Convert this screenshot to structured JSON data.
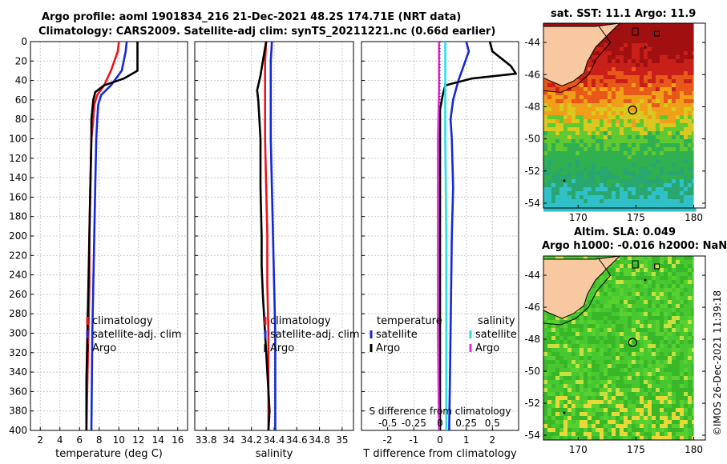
{
  "title_line1": "Argo profile: aoml 1901834_216 21-Dec-2021 48.2S 174.71E (NRT data)",
  "title_line2": "Climatology: CARS2009. Satellite-adj clim: synTS_20211221.nc (0.66d earlier)",
  "sst_title": "sat. SST: 11.1 Argo: 11.9",
  "sla_title1": "Altim. SLA: 0.049",
  "sla_title2": "Argo h1000: -0.016 h2000: NaN",
  "copyright": "©IMOS 26-Dec-2021 11:39:18",
  "colors": {
    "climatology": "#e8141c",
    "satellite": "#1428d8",
    "argo": "#000000",
    "sal_satellite": "#28e0e8",
    "sal_diff": "#e828e0",
    "grid": "#c8c8c8",
    "land": "#f8c8a0"
  },
  "chart_data": [
    {
      "id": "temperature",
      "type": "line",
      "xlabel": "temperature (deg C)",
      "ylabel": "",
      "xlim": [
        1,
        17
      ],
      "ylim": [
        400,
        0
      ],
      "xticks": [
        2,
        4,
        6,
        8,
        10,
        12,
        14,
        16
      ],
      "yticks": [
        0,
        20,
        40,
        60,
        80,
        100,
        120,
        140,
        160,
        180,
        200,
        220,
        240,
        260,
        280,
        300,
        320,
        340,
        360,
        380,
        400
      ],
      "legend": [
        "climatology",
        "satellite-adj. clim",
        "Argo"
      ],
      "series": [
        {
          "name": "climatology",
          "depth": [
            0,
            10,
            30,
            45,
            55,
            65,
            80,
            100,
            150,
            200,
            250,
            300,
            350,
            400
          ],
          "values": [
            10,
            9.9,
            9.2,
            8.5,
            7.8,
            7.5,
            7.4,
            7.2,
            7.1,
            7.0,
            7.0,
            6.9,
            6.8,
            6.7
          ]
        },
        {
          "name": "satellite-adj. clim",
          "depth": [
            0,
            10,
            30,
            45,
            55,
            65,
            80,
            100,
            150,
            200,
            250,
            300,
            350,
            400
          ],
          "values": [
            10.8,
            10.7,
            10.3,
            9.2,
            8.2,
            7.9,
            7.8,
            7.7,
            7.6,
            7.5,
            7.4,
            7.3,
            7.25,
            7.2
          ]
        },
        {
          "name": "Argo",
          "depth": [
            0,
            10,
            30,
            38,
            45,
            52,
            60,
            70,
            80,
            100,
            150,
            200,
            250,
            300,
            350,
            400
          ],
          "values": [
            11.9,
            11.9,
            11.9,
            10.5,
            8.5,
            7.6,
            7.4,
            7.3,
            7.2,
            7.2,
            7.1,
            7.0,
            6.9,
            6.8,
            6.7,
            6.7
          ]
        }
      ]
    },
    {
      "id": "salinity",
      "type": "line",
      "xlabel": "salinity",
      "xlim": [
        33.7,
        35.1
      ],
      "ylim": [
        400,
        0
      ],
      "xticks": [
        33.8,
        34,
        34.2,
        34.4,
        34.6,
        34.8,
        35
      ],
      "xticklabels": [
        "33.8",
        "34",
        "34.2",
        "34.4",
        "34.6",
        "34.8",
        "35"
      ],
      "legend": [
        "climatology",
        "satellite-adj. clim",
        "Argo"
      ],
      "series": [
        {
          "name": "climatology",
          "depth": [
            0,
            20,
            40,
            60,
            100,
            150,
            200,
            250,
            300,
            350,
            400
          ],
          "values": [
            34.33,
            34.32,
            34.32,
            34.32,
            34.32,
            34.33,
            34.34,
            34.34,
            34.35,
            34.35,
            34.35
          ]
        },
        {
          "name": "satellite-adj. clim",
          "depth": [
            0,
            20,
            40,
            60,
            100,
            150,
            200,
            250,
            300,
            350,
            400
          ],
          "values": [
            34.38,
            34.37,
            34.37,
            34.37,
            34.37,
            34.38,
            34.39,
            34.4,
            34.41,
            34.41,
            34.41
          ]
        },
        {
          "name": "Argo",
          "depth": [
            0,
            20,
            35,
            50,
            60,
            80,
            100,
            150,
            200,
            230,
            260,
            300,
            340,
            380,
            400
          ],
          "values": [
            34.33,
            34.3,
            34.28,
            34.25,
            34.26,
            34.27,
            34.28,
            34.28,
            34.29,
            34.29,
            34.3,
            34.32,
            34.34,
            34.36,
            34.35
          ]
        }
      ]
    },
    {
      "id": "difference",
      "type": "line",
      "xlabel": "T difference from climatology",
      "xlabel_top": "S difference from climatology",
      "xlim": [
        -3,
        3
      ],
      "ylim": [
        400,
        0
      ],
      "xticks": [
        -2,
        -1,
        0,
        1,
        2
      ],
      "xticklabels": [
        "-2",
        "-1",
        "0",
        "1",
        "2"
      ],
      "s_xlim": [
        -0.75,
        0.75
      ],
      "s_xticks": [
        -0.5,
        -0.25,
        0,
        0.25,
        0.5
      ],
      "s_xticklabels": [
        "-0.5",
        "-0.25",
        "0",
        "0.25",
        "0.5"
      ],
      "legend_temp_title": "temperature",
      "legend_sal_title": "salinity",
      "legend_temp": [
        "satellite",
        "Argo"
      ],
      "legend_sal": [
        "satellite",
        "Argo"
      ],
      "series": [
        {
          "name": "T satellite",
          "depth": [
            0,
            10,
            25,
            40,
            60,
            80,
            100,
            150,
            200,
            300,
            400
          ],
          "values": [
            1.0,
            1.1,
            0.9,
            0.7,
            0.5,
            0.4,
            0.45,
            0.5,
            0.45,
            0.4,
            0.35
          ]
        },
        {
          "name": "T Argo",
          "depth": [
            0,
            10,
            25,
            33,
            38,
            45,
            55,
            70,
            100,
            200,
            300,
            400
          ],
          "values": [
            1.9,
            2.0,
            2.7,
            2.9,
            1.2,
            0.2,
            0.1,
            0.0,
            0.0,
            0.0,
            0.0,
            0.0
          ]
        },
        {
          "name": "S satellite",
          "depth": [
            0,
            50,
            100,
            200,
            300,
            400
          ],
          "values": [
            0.05,
            0.05,
            0.05,
            0.06,
            0.06,
            0.06
          ]
        },
        {
          "name": "S Argo",
          "depth": [
            0,
            50,
            100,
            200,
            300,
            400
          ],
          "values": [
            -0.01,
            -0.01,
            -0.02,
            -0.02,
            -0.02,
            -0.01
          ]
        }
      ]
    },
    {
      "id": "sst_map",
      "type": "heatmap",
      "title": "sat. SST: 11.1 Argo: 11.9",
      "xlim": [
        167,
        181
      ],
      "ylim": [
        -54.3,
        -42.8
      ],
      "xticks": [
        170,
        175,
        180
      ],
      "yticks": [
        -44,
        -46,
        -48,
        -50,
        -52,
        -54
      ],
      "argo_position": [
        174.71,
        -48.2
      ]
    },
    {
      "id": "sla_map",
      "type": "heatmap",
      "title": "Altim. SLA: 0.049",
      "xlim": [
        167,
        181
      ],
      "ylim": [
        -54.3,
        -42.8
      ],
      "xticks": [
        170,
        175,
        180
      ],
      "yticks": [
        -44,
        -46,
        -48,
        -50,
        -52,
        -54
      ],
      "argo_position": [
        174.71,
        -48.2
      ]
    }
  ]
}
